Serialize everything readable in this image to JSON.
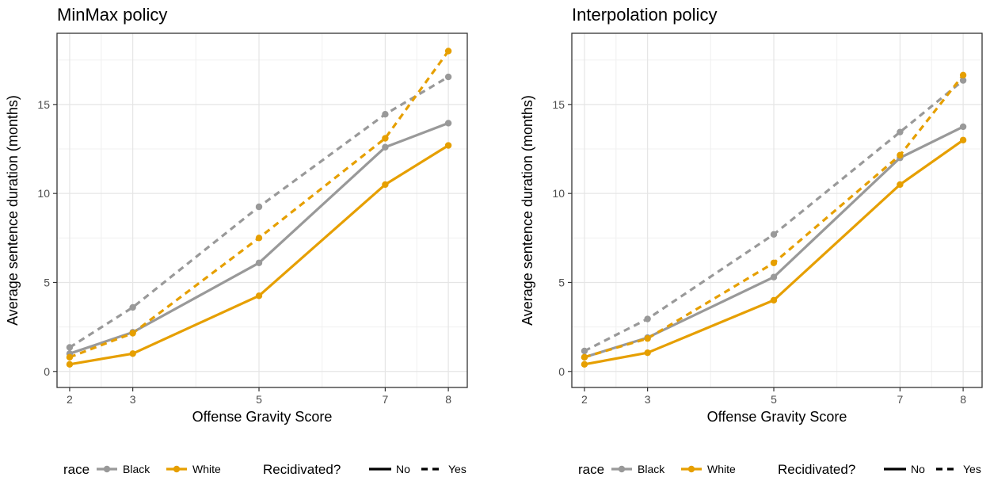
{
  "chart_data": [
    {
      "type": "line",
      "title": "MinMax policy",
      "xlabel": "Offense Gravity Score",
      "ylabel": "Average sentence duration (months)",
      "x_ticks": [
        2,
        3,
        5,
        7,
        8
      ],
      "y_ticks": [
        0,
        5,
        10,
        15
      ],
      "xlim": [
        1.8,
        8.3
      ],
      "ylim": [
        -0.9,
        19.0
      ],
      "grid": true,
      "legend_placement": "bottom",
      "series": [
        {
          "race": "Black",
          "recidivated": "No",
          "color": "#999999",
          "x": [
            2,
            3,
            5,
            7,
            8
          ],
          "y": [
            1.0,
            2.2,
            6.1,
            12.6,
            13.95
          ]
        },
        {
          "race": "Black",
          "recidivated": "Yes",
          "color": "#999999",
          "x": [
            2,
            3,
            5,
            7,
            8
          ],
          "y": [
            1.35,
            3.6,
            9.25,
            14.45,
            16.55
          ]
        },
        {
          "race": "White",
          "recidivated": "No",
          "color": "#E69F00",
          "x": [
            2,
            3,
            5,
            7,
            8
          ],
          "y": [
            0.4,
            1.0,
            4.25,
            10.5,
            12.7
          ]
        },
        {
          "race": "White",
          "recidivated": "Yes",
          "color": "#E69F00",
          "x": [
            2,
            3,
            5,
            7,
            8
          ],
          "y": [
            0.8,
            2.15,
            7.5,
            13.1,
            18.0
          ]
        }
      ]
    },
    {
      "type": "line",
      "title": "Interpolation policy",
      "xlabel": "Offense Gravity Score",
      "ylabel": "Average sentence duration (months)",
      "x_ticks": [
        2,
        3,
        5,
        7,
        8
      ],
      "y_ticks": [
        0,
        5,
        10,
        15
      ],
      "xlim": [
        1.8,
        8.3
      ],
      "ylim": [
        -0.9,
        19.0
      ],
      "grid": true,
      "legend_placement": "bottom",
      "series": [
        {
          "race": "Black",
          "recidivated": "No",
          "color": "#999999",
          "x": [
            2,
            3,
            5,
            7,
            8
          ],
          "y": [
            0.8,
            1.9,
            5.3,
            12.0,
            13.75
          ]
        },
        {
          "race": "Black",
          "recidivated": "Yes",
          "color": "#999999",
          "x": [
            2,
            3,
            5,
            7,
            8
          ],
          "y": [
            1.15,
            2.95,
            7.7,
            13.45,
            16.35
          ]
        },
        {
          "race": "White",
          "recidivated": "No",
          "color": "#E69F00",
          "x": [
            2,
            3,
            5,
            7,
            8
          ],
          "y": [
            0.4,
            1.05,
            4.0,
            10.5,
            13.0
          ]
        },
        {
          "race": "White",
          "recidivated": "Yes",
          "color": "#E69F00",
          "x": [
            2,
            3,
            5,
            7,
            8
          ],
          "y": [
            0.8,
            1.85,
            6.1,
            12.15,
            16.65
          ]
        }
      ]
    }
  ],
  "legend": {
    "race_title": "race",
    "race_items": [
      {
        "label": "Black",
        "color": "#999999"
      },
      {
        "label": "White",
        "color": "#E69F00"
      }
    ],
    "recid_title": "Recidivated?",
    "recid_items": [
      {
        "label": "No",
        "linetype": "solid"
      },
      {
        "label": "Yes",
        "linetype": "dashed"
      }
    ]
  }
}
